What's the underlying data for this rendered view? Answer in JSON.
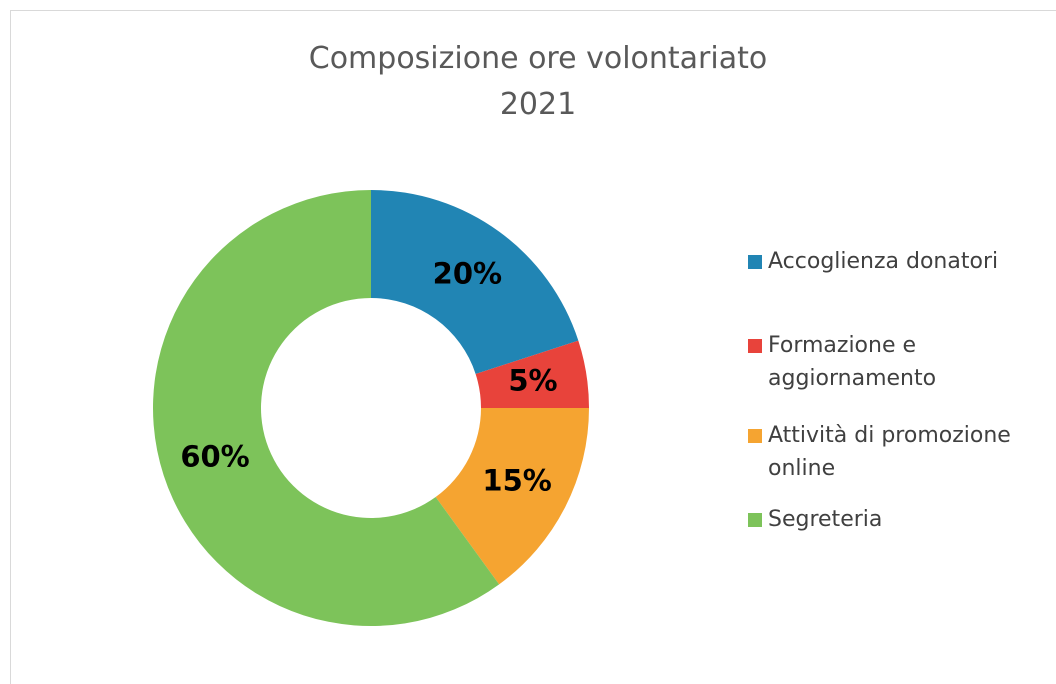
{
  "chart_data": {
    "type": "pie",
    "title": [
      "Composizione ore volontariato",
      "2021"
    ],
    "categories": [
      "Accoglienza donatori",
      "Formazione e aggiornamento",
      "Attività di promozione online",
      "Segreteria"
    ],
    "values": [
      20,
      5,
      15,
      60
    ],
    "value_labels": [
      "20%",
      "5%",
      "15%",
      "60%"
    ],
    "colors": [
      "#2185b4",
      "#e8433b",
      "#f5a431",
      "#7dc35a"
    ],
    "legend": "right"
  }
}
